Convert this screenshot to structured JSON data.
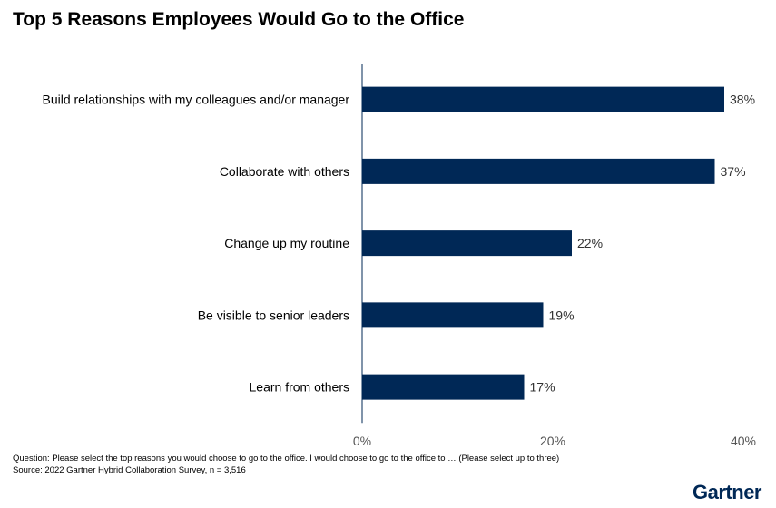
{
  "chart_data": {
    "type": "bar",
    "orientation": "horizontal",
    "title": "Top 5 Reasons Employees Would Go to the Office",
    "categories": [
      "Build relationships with my colleagues and/or manager",
      "Collaborate with others",
      "Change up my routine",
      "Be visible to senior leaders",
      "Learn from others"
    ],
    "values": [
      38,
      37,
      22,
      19,
      17
    ],
    "data_labels": [
      "38%",
      "37%",
      "22%",
      "19%",
      "17%"
    ],
    "xlim": [
      0,
      40
    ],
    "xticks": [
      0,
      20,
      40
    ],
    "xtick_labels": [
      "0%",
      "20%",
      "40%"
    ],
    "grid": false,
    "bar_color": "#002856"
  },
  "footnotes": {
    "question": "Question: Please select the top reasons you would choose to go to the office. I would choose to go to the office to … (Please select up to three)",
    "source": "Source: 2022 Gartner Hybrid Collaboration Survey, n = 3,516"
  },
  "logo": "Gartner"
}
